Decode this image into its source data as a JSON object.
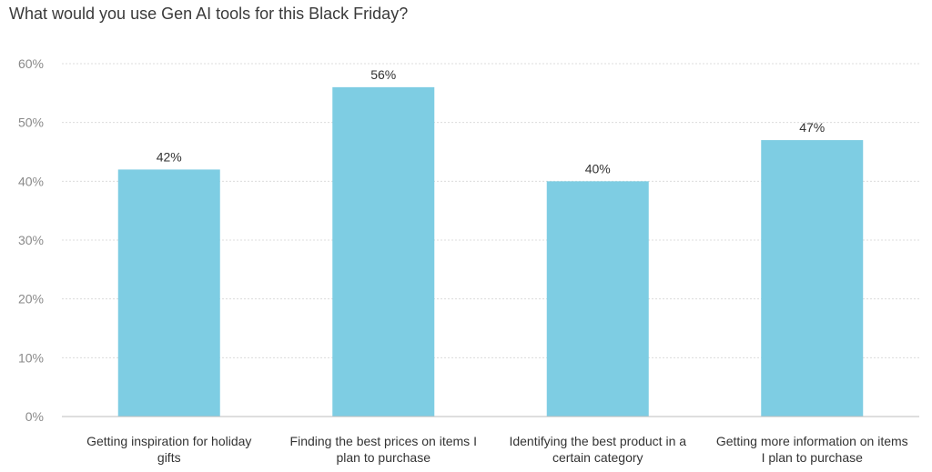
{
  "chart_data": {
    "type": "bar",
    "title": "What would you use Gen AI tools for this Black Friday?",
    "categories": [
      [
        "Getting inspiration for holiday",
        "gifts"
      ],
      [
        "Finding the best prices on items I",
        "plan to purchase"
      ],
      [
        "Identifying the best product in a",
        "certain category"
      ],
      [
        "Getting more information on items",
        "I plan to purchase"
      ]
    ],
    "values": [
      42,
      56,
      40,
      47
    ],
    "value_labels": [
      "42%",
      "56%",
      "40%",
      "47%"
    ],
    "y_ticks": [
      0,
      10,
      20,
      30,
      40,
      50,
      60
    ],
    "y_tick_labels": [
      "0%",
      "10%",
      "20%",
      "30%",
      "40%",
      "50%",
      "60%"
    ],
    "ylim": [
      0,
      60
    ],
    "grid": true,
    "legend": "none",
    "colors": {
      "bar": "#7ecde3"
    }
  }
}
